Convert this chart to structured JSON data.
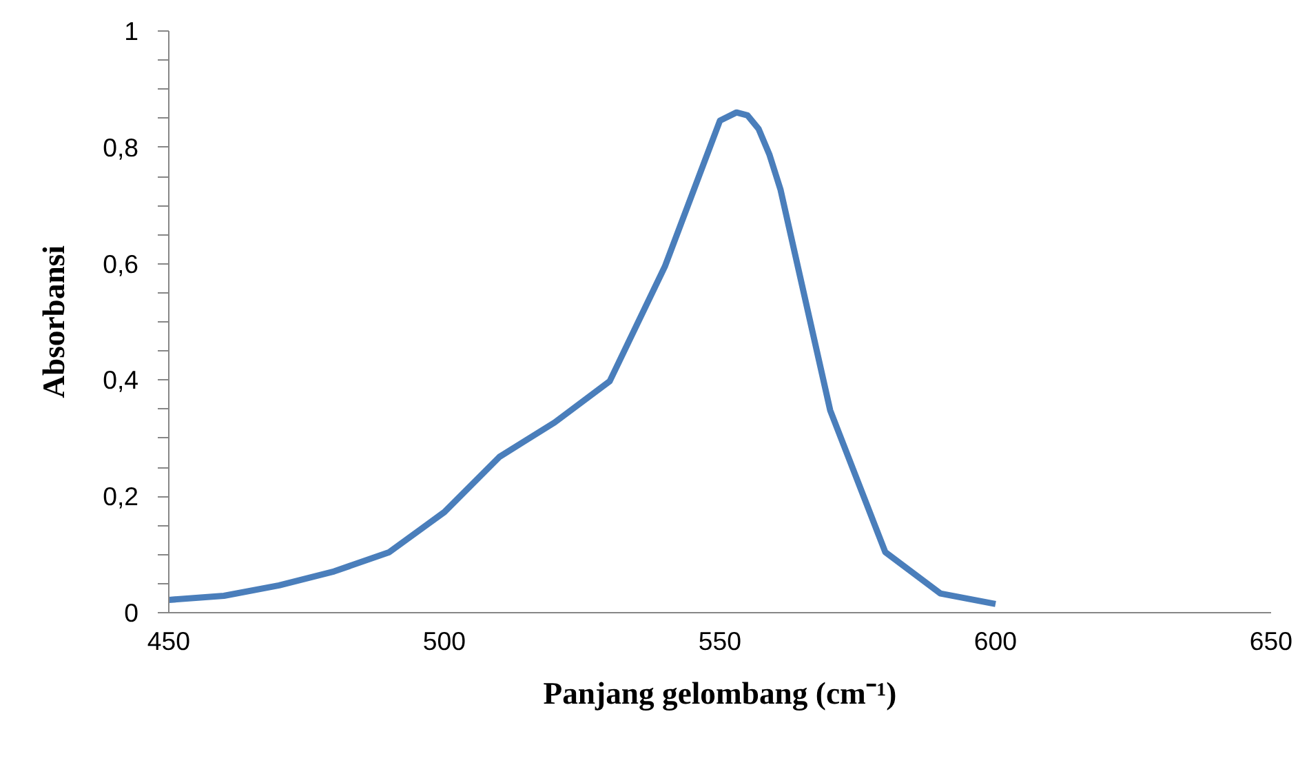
{
  "chart_data": {
    "type": "line",
    "xlabel": "Panjang gelombang (cm⁻¹)",
    "ylabel": "Absorbansi",
    "xlim": [
      450,
      650
    ],
    "xticks": [
      450,
      500,
      550,
      600,
      650
    ],
    "ylim": [
      0,
      1
    ],
    "yticks": [
      {
        "value": 0,
        "label": "0"
      },
      {
        "value": 0.2,
        "label": "0,2"
      },
      {
        "value": 0.4,
        "label": "0,4"
      },
      {
        "value": 0.6,
        "label": "0,6"
      },
      {
        "value": 0.8,
        "label": "0,8"
      },
      {
        "value": 1,
        "label": "1"
      }
    ],
    "grid": false,
    "series": [
      {
        "color": "#4a7ebb",
        "x": [
          450,
          460,
          470,
          480,
          490,
          500,
          510,
          520,
          530,
          540,
          550,
          553,
          555,
          557,
          559,
          561,
          570,
          580,
          590,
          600
        ],
        "values": [
          0.022,
          0.029,
          0.047,
          0.071,
          0.104,
          0.173,
          0.268,
          0.327,
          0.398,
          0.595,
          0.846,
          0.86,
          0.855,
          0.832,
          0.787,
          0.727,
          0.348,
          0.104,
          0.033,
          0.015
        ]
      }
    ]
  }
}
